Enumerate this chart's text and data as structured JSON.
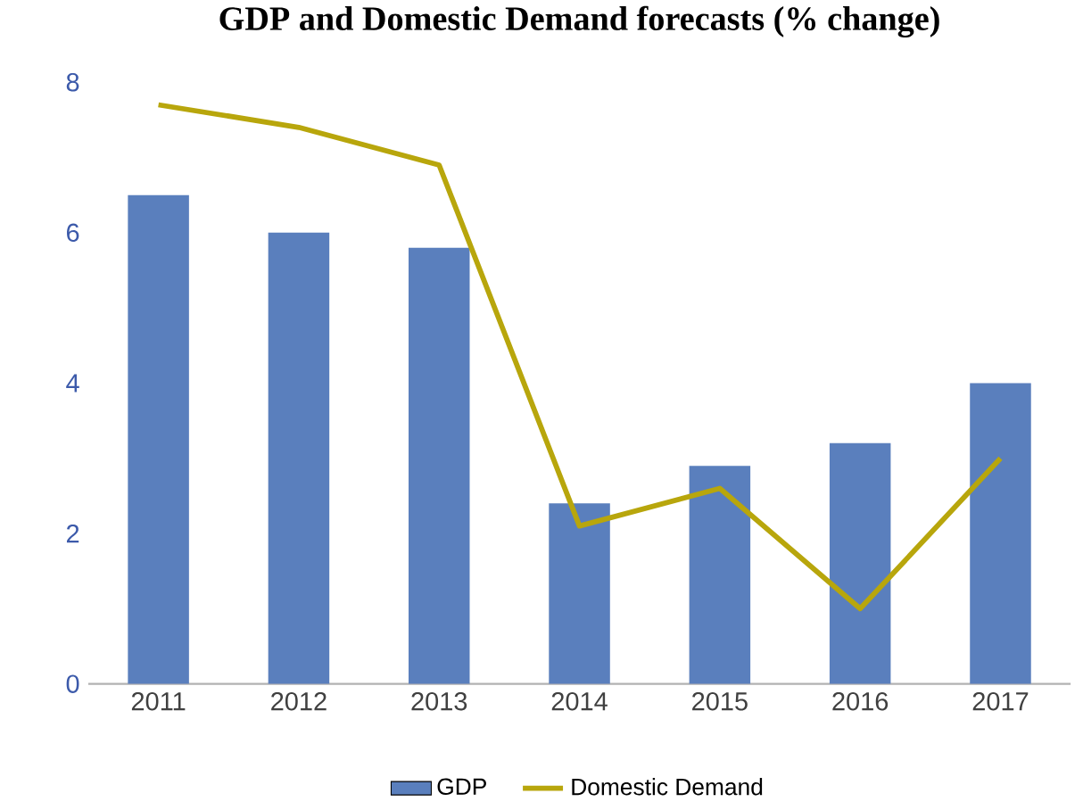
{
  "chart_data": {
    "type": "bar",
    "title": "GDP and Domestic Demand forecasts (% change)",
    "categories": [
      "2011",
      "2012",
      "2013",
      "2014",
      "2015",
      "2016",
      "2017"
    ],
    "series": [
      {
        "name": "GDP",
        "color": "#5a7fbd",
        "values": [
          6.5,
          6.0,
          5.8,
          2.4,
          2.9,
          3.2,
          4.0
        ]
      },
      {
        "name": "Domestic Demand",
        "type": "line",
        "color": "#b8a60c",
        "values": [
          7.7,
          7.4,
          6.9,
          2.1,
          2.6,
          1.0,
          3.0
        ]
      }
    ],
    "ylim": [
      0,
      8
    ],
    "yticks": [
      0,
      2,
      4,
      6,
      8
    ],
    "grid": false,
    "legend": "bottom"
  }
}
